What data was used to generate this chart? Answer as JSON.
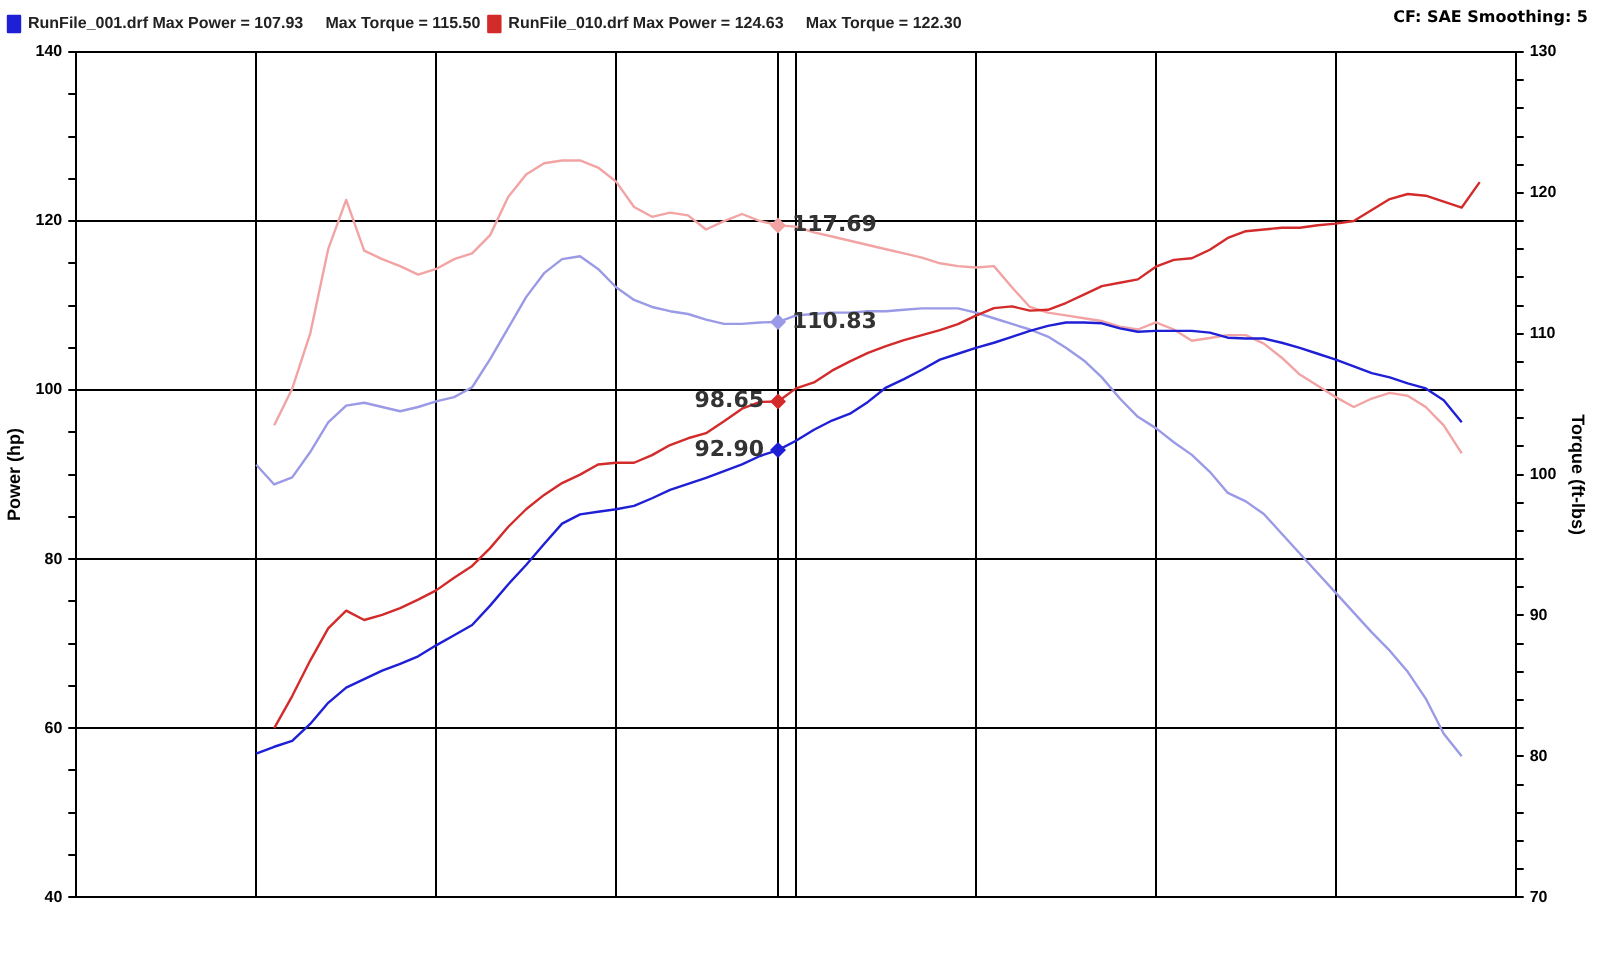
{
  "chart_data": {
    "type": "line",
    "ylabel": "Power (hp)",
    "y2label": "Torque (ft-lbs)",
    "annotations": [
      "CF: SAE  Smoothing: 5"
    ],
    "categories": [
      null,
      null,
      null,
      null,
      null,
      null,
      null,
      null,
      null,
      null,
      null,
      null,
      null,
      null,
      null,
      null,
      null,
      null,
      null,
      null,
      null,
      null,
      null,
      null,
      null,
      null,
      null,
      null,
      null,
      null,
      null,
      null,
      null,
      null,
      null,
      null,
      null,
      null,
      null,
      null,
      null,
      null,
      null,
      null,
      null,
      null,
      null,
      null,
      null,
      null,
      null,
      null,
      null,
      null,
      null,
      null,
      null,
      null,
      null,
      null,
      null,
      null,
      null,
      null,
      null,
      null,
      null,
      null,
      null,
      null,
      null,
      null,
      null,
      null,
      null,
      null,
      null,
      null,
      null,
      null,
      null
    ],
    "ylim": [
      40,
      140
    ],
    "yticks": [
      40,
      {
        "value": 45,
        "label": null
      },
      {
        "value": 50,
        "label": null
      },
      {
        "value": 55,
        "label": null
      },
      60,
      {
        "value": 65,
        "label": null
      },
      {
        "value": 70,
        "label": null
      },
      {
        "value": 75,
        "label": null
      },
      80,
      {
        "value": 85,
        "label": null
      },
      {
        "value": 90,
        "label": null
      },
      {
        "value": 95,
        "label": null
      },
      100,
      {
        "value": 105,
        "label": null
      },
      {
        "value": 110,
        "label": null
      },
      {
        "value": 115,
        "label": null
      },
      120,
      {
        "value": 125,
        "label": null
      },
      {
        "value": 130,
        "label": null
      },
      {
        "value": 135,
        "label": null
      },
      140
    ],
    "y2lim": [
      70,
      130
    ],
    "y2ticks": [
      70,
      {
        "value": 72,
        "label": null
      },
      {
        "value": 74,
        "label": null
      },
      {
        "value": 76,
        "label": null
      },
      {
        "value": 78,
        "label": null
      },
      80,
      {
        "value": 82,
        "label": null
      },
      {
        "value": 84,
        "label": null
      },
      {
        "value": 86,
        "label": null
      },
      {
        "value": 88,
        "label": null
      },
      90,
      {
        "value": 92,
        "label": null
      },
      {
        "value": 94,
        "label": null
      },
      {
        "value": 96,
        "label": null
      },
      {
        "value": 98,
        "label": null
      },
      100,
      {
        "value": 102,
        "label": null
      },
      {
        "value": 104,
        "label": null
      },
      {
        "value": 106,
        "label": null
      },
      {
        "value": 108,
        "label": null
      },
      110,
      {
        "value": 112,
        "label": null
      },
      {
        "value": 114,
        "label": null
      },
      {
        "value": 116,
        "label": null
      },
      {
        "value": 118,
        "label": null
      },
      120,
      {
        "value": 122,
        "label": null
      },
      {
        "value": 124,
        "label": null
      },
      {
        "value": 126,
        "label": null
      },
      {
        "value": 128,
        "label": null
      },
      130
    ],
    "grid": true,
    "legend": "top left",
    "marker": "none",
    "line_style": "solid",
    "series": [
      {
        "name": "RunFile_001.drf Max Power = 107.93     Max Torque = 115.50",
        "color": "#1f1fd6",
        "axis": "y",
        "values": [
          null,
          null,
          null,
          null,
          null,
          null,
          null,
          null,
          null,
          null,
          57.0,
          57.8,
          58.5,
          60.5,
          63.0,
          64.8,
          65.8,
          66.8,
          67.6,
          68.5,
          69.8,
          71.0,
          72.2,
          74.5,
          77.0,
          79.3,
          81.8,
          84.2,
          85.3,
          85.6,
          85.9,
          86.3,
          87.2,
          88.2,
          88.9,
          89.6,
          90.4,
          91.2,
          92.2,
          92.9,
          94.0,
          95.3,
          96.4,
          97.2,
          98.6,
          100.3,
          101.3,
          102.4,
          103.6,
          104.3,
          105.0,
          105.6,
          106.3,
          107.0,
          107.6,
          108.0,
          108.0,
          107.9,
          107.3,
          106.9,
          107.0,
          107.0,
          107.0,
          106.8,
          106.2,
          106.1,
          106.1,
          105.6,
          105.0,
          104.3,
          103.6,
          102.8,
          102.0,
          101.5,
          100.8,
          100.2,
          98.8,
          96.2,
          null,
          null,
          null
        ],
        "value_labels": [
          null,
          null,
          null,
          null,
          null,
          null,
          null,
          null,
          null,
          null,
          null,
          null,
          null,
          null,
          null,
          null,
          null,
          null,
          null,
          null,
          null,
          null,
          null,
          null,
          null,
          null,
          null,
          null,
          null,
          null,
          null,
          null,
          null,
          null,
          null,
          null,
          null,
          null,
          null,
          "92.90",
          null,
          null,
          null,
          null,
          null,
          null,
          null,
          null,
          null,
          null,
          null,
          null,
          null,
          null,
          null,
          null,
          null,
          null,
          null,
          null,
          null,
          null,
          null,
          null,
          null,
          null,
          null,
          null,
          null,
          null,
          null,
          null,
          null,
          null,
          null,
          null,
          null,
          null,
          null,
          null,
          null
        ]
      },
      {
        "name": "RunFile_010.drf Max Power = 124.63     Max Torque = 122.30",
        "color": "#d32a2a",
        "axis": "y",
        "values": [
          null,
          null,
          null,
          null,
          null,
          null,
          null,
          null,
          null,
          null,
          null,
          60.0,
          63.8,
          68.0,
          71.8,
          73.9,
          72.8,
          73.4,
          74.2,
          75.2,
          76.3,
          77.8,
          79.2,
          81.3,
          83.8,
          85.9,
          87.6,
          89.0,
          90.0,
          91.2,
          91.4,
          91.4,
          92.3,
          93.5,
          94.3,
          94.9,
          96.3,
          97.8,
          98.6,
          98.65,
          100.2,
          100.9,
          102.3,
          103.4,
          104.4,
          105.2,
          105.9,
          106.5,
          107.1,
          107.8,
          108.8,
          109.7,
          109.9,
          109.4,
          109.5,
          110.3,
          111.3,
          112.3,
          112.7,
          113.1,
          114.6,
          115.4,
          115.6,
          116.6,
          118.0,
          118.8,
          119.0,
          119.2,
          119.2,
          119.5,
          119.7,
          120.0,
          121.3,
          122.6,
          123.2,
          123.0,
          122.3,
          121.6,
          124.6,
          null,
          null
        ],
        "value_labels": [
          null,
          null,
          null,
          null,
          null,
          null,
          null,
          null,
          null,
          null,
          null,
          null,
          null,
          null,
          null,
          null,
          null,
          null,
          null,
          null,
          null,
          null,
          null,
          null,
          null,
          null,
          null,
          null,
          null,
          null,
          null,
          null,
          null,
          null,
          null,
          null,
          null,
          null,
          null,
          "98.65",
          null,
          null,
          null,
          null,
          null,
          null,
          null,
          null,
          null,
          null,
          null,
          null,
          null,
          null,
          null,
          null,
          null,
          null,
          null,
          null,
          null,
          null,
          null,
          null,
          null,
          null,
          null,
          null,
          null,
          null,
          null,
          null,
          null,
          null,
          null,
          null,
          null,
          null,
          null,
          null,
          null
        ]
      },
      {
        "color": "#9a9ae6",
        "axis": "y2",
        "values": [
          null,
          null,
          null,
          null,
          null,
          null,
          null,
          null,
          null,
          null,
          100.7,
          99.3,
          99.8,
          101.6,
          103.7,
          104.9,
          105.1,
          104.8,
          104.5,
          104.8,
          105.2,
          105.5,
          106.2,
          108.2,
          110.4,
          112.6,
          114.3,
          115.3,
          115.5,
          114.6,
          113.3,
          112.4,
          111.9,
          111.6,
          111.4,
          111.0,
          110.7,
          110.7,
          110.8,
          110.83,
          111.3,
          111.4,
          111.5,
          111.5,
          111.6,
          111.6,
          111.7,
          111.8,
          111.8,
          111.8,
          111.5,
          111.1,
          110.7,
          110.3,
          109.8,
          109.0,
          108.1,
          106.9,
          105.4,
          104.1,
          103.3,
          102.3,
          101.4,
          100.2,
          98.7,
          98.1,
          97.2,
          95.8,
          94.4,
          93.0,
          91.6,
          90.2,
          88.8,
          87.5,
          86.0,
          84.1,
          81.6,
          80.0,
          null,
          null,
          null
        ],
        "value_labels": [
          null,
          null,
          null,
          null,
          null,
          null,
          null,
          null,
          null,
          null,
          null,
          null,
          null,
          null,
          null,
          null,
          null,
          null,
          null,
          null,
          null,
          null,
          null,
          null,
          null,
          null,
          null,
          null,
          null,
          null,
          null,
          null,
          null,
          null,
          null,
          null,
          null,
          null,
          null,
          "110.83",
          null,
          null,
          null,
          null,
          null,
          null,
          null,
          null,
          null,
          null,
          null,
          null,
          null,
          null,
          null,
          null,
          null,
          null,
          null,
          null,
          null,
          null,
          null,
          null,
          null,
          null,
          null,
          null,
          null,
          null,
          null,
          null,
          null,
          null,
          null,
          null,
          null,
          null,
          null,
          null,
          null
        ]
      },
      {
        "color": "#f2a3a3",
        "axis": "y2",
        "values": [
          null,
          null,
          null,
          null,
          null,
          null,
          null,
          null,
          null,
          null,
          null,
          103.5,
          106.1,
          110.0,
          116.0,
          119.5,
          115.9,
          115.3,
          114.8,
          114.2,
          114.6,
          115.3,
          115.7,
          117.0,
          119.7,
          121.3,
          122.1,
          122.3,
          122.3,
          121.8,
          120.8,
          119.0,
          118.3,
          118.6,
          118.4,
          117.4,
          118.0,
          118.5,
          118.0,
          117.69,
          117.6,
          117.2,
          116.9,
          116.6,
          116.3,
          116.0,
          115.7,
          115.4,
          115.0,
          114.8,
          114.7,
          114.8,
          113.3,
          111.9,
          111.5,
          111.3,
          111.1,
          110.9,
          110.5,
          110.3,
          110.8,
          110.3,
          109.5,
          109.7,
          109.9,
          109.9,
          109.3,
          108.3,
          107.1,
          106.3,
          105.5,
          104.8,
          105.4,
          105.8,
          105.6,
          104.8,
          103.5,
          101.5,
          null,
          null,
          null
        ],
        "value_labels": [
          null,
          null,
          null,
          null,
          null,
          null,
          null,
          null,
          null,
          null,
          null,
          null,
          null,
          null,
          null,
          null,
          null,
          null,
          null,
          null,
          null,
          null,
          null,
          null,
          null,
          null,
          null,
          null,
          null,
          null,
          null,
          null,
          null,
          null,
          null,
          null,
          null,
          null,
          null,
          "117.69",
          null,
          null,
          null,
          null,
          null,
          null,
          null,
          null,
          null,
          null,
          null,
          null,
          null,
          null,
          null,
          null,
          null,
          null,
          null,
          null,
          null,
          null,
          null,
          null,
          null,
          null,
          null,
          null,
          null,
          null,
          null,
          null,
          null,
          null,
          null,
          null,
          null,
          null,
          null,
          null,
          null
        ]
      }
    ]
  }
}
